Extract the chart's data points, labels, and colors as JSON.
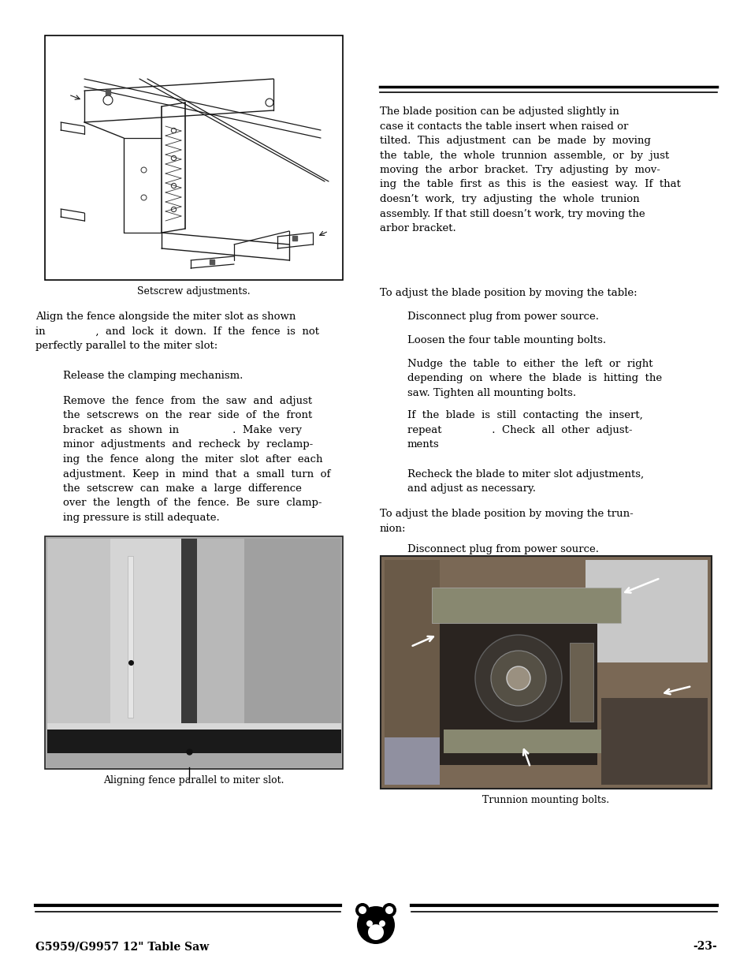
{
  "page_bg": "#ffffff",
  "text_color": "#000000",
  "body_font_size": 9.5,
  "caption_font_size": 9.0,
  "footer_font_size": 10.0,
  "right_col_intro": "The blade position can be adjusted slightly in\ncase it contacts the table insert when raised or\ntilted.  This  adjustment  can  be  made  by  moving\nthe  table,  the  whole  trunnion  assemble,  or  by  just\nmoving  the  arbor  bracket.  Try  adjusting  by  mov-\ning  the  table  first  as  this  is  the  easiest  way.  If  that\ndoesn’t  work,  try  adjusting  the  whole  trunion\nassembly. If that still doesn’t work, try moving the\narbor bracket.",
  "right_col_section1_head": "To adjust the blade position by moving the table:",
  "right_col_steps1": [
    "Disconnect plug from power source.",
    "Loosen the four table mounting bolts.",
    "Nudge  the  table  to  either  the  left  or  right\ndepending  on  where  the  blade  is  hitting  the\nsaw. Tighten all mounting bolts.",
    "If  the  blade  is  still  contacting  the  insert,\nrepeat               .  Check  all  other  adjust-\nments",
    "Recheck the blade to miter slot adjustments,\nand adjust as necessary."
  ],
  "right_col_section2_head": "To adjust the blade position by moving the trun-\nnion:",
  "right_col_steps2": [
    "Disconnect plug from power source."
  ],
  "left_col_align_text1": "Align the fence alongside the miter slot as shown\nin               ,  and  lock  it  down.  If  the  fence  is  not\nperfectly parallel to the miter slot:",
  "left_col_steps": [
    "Release the clamping mechanism.",
    "Remove  the  fence  from  the  saw  and  adjust\nthe  setscrews  on  the  rear  side  of  the  front\nbracket  as  shown  in                .  Make  very\nminor  adjustments  and  recheck  by  reclamp-\ning  the  fence  along  the  miter  slot  after  each\nadjustment.  Keep  in  mind  that  a  small  turn  of\nthe  setscrew  can  make  a  large  difference\nover  the  length  of  the  fence.  Be  sure  clamp-\ning pressure is still adequate."
  ],
  "caption_setscrew": "Setscrew adjustments.",
  "caption_fence": "Aligning fence parallel to miter slot.",
  "caption_trunnion": "Trunnion mounting bolts.",
  "footer_left": "G5959/G9957 12\" Table Saw",
  "footer_right": "-23-"
}
